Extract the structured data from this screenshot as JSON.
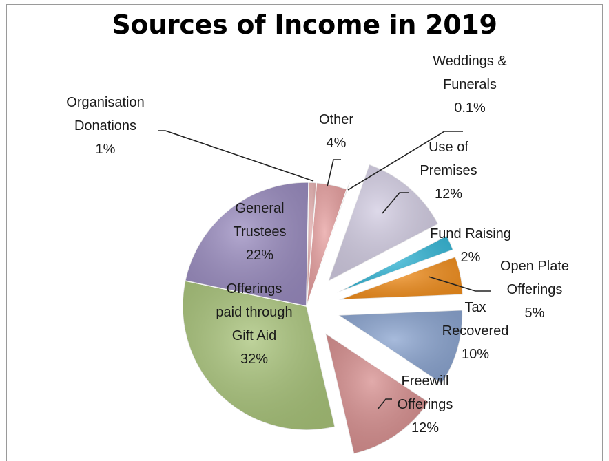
{
  "chart_data": {
    "type": "pie",
    "title": "Sources of Income in 2019",
    "slices": [
      {
        "name": "Other",
        "lines": [
          "Other",
          "4%"
        ],
        "value": 4,
        "color": "#e8a0a0"
      },
      {
        "name": "Weddings & Funerals",
        "lines": [
          "Weddings &",
          "Funerals",
          "0.1%"
        ],
        "value": 0.1,
        "color": "#c8c0d8"
      },
      {
        "name": "Use of Premises",
        "lines": [
          "Use of",
          "Premises",
          "12%"
        ],
        "value": 12,
        "color": "#d2cce2"
      },
      {
        "name": "Fund Raising",
        "lines": [
          "Fund Raising",
          "2%"
        ],
        "value": 2,
        "color": "#35b8d8"
      },
      {
        "name": "Open Plate Offerings",
        "lines": [
          "Open Plate",
          "Offerings",
          "5%"
        ],
        "value": 5,
        "color": "#f28e1c"
      },
      {
        "name": "Tax Recovered",
        "lines": [
          "Tax",
          "Recovered",
          "10%"
        ],
        "value": 10,
        "color": "#8aa4d0"
      },
      {
        "name": "Freewill Offerings",
        "lines": [
          "Freewill",
          "Offerings",
          "12%"
        ],
        "value": 12,
        "color": "#d78e8e"
      },
      {
        "name": "Offerings paid through Gift Aid",
        "lines": [
          "Offerings",
          "paid through",
          "Gift Aid",
          "32%"
        ],
        "value": 32,
        "color": "#a9c47a"
      },
      {
        "name": "General Trustees",
        "lines": [
          "General",
          "Trustees",
          "22%"
        ],
        "value": 22,
        "color": "#9a8cc0"
      },
      {
        "name": "Organisation Donations",
        "lines": [
          "Organisation",
          "Donations",
          "1%"
        ],
        "value": 1,
        "color": "#e6b0b0"
      }
    ],
    "legend": "none",
    "labels": "outside-and-inside"
  }
}
